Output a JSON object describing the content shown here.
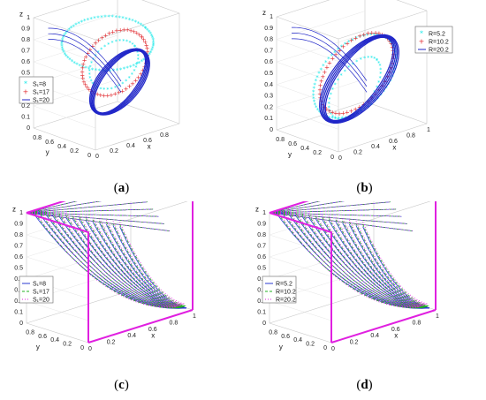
{
  "panels": [
    {
      "caption": "a",
      "legend": [
        "S₁=8",
        "S₁=17",
        "S₁=20"
      ],
      "series_colors": [
        "#1de9e9",
        "#e0262b",
        "#2026c8"
      ],
      "series_styles": [
        "star",
        "plus",
        "line"
      ],
      "legend_pos": "left"
    },
    {
      "caption": "b",
      "legend": [
        "R=5.2",
        "R=10.2",
        "R=20.2"
      ],
      "series_colors": [
        "#1de9e9",
        "#e0262b",
        "#2026c8"
      ],
      "series_styles": [
        "star",
        "plus",
        "line"
      ],
      "legend_pos": "top-right"
    },
    {
      "caption": "c",
      "legend": [
        "S₁=8",
        "S₁=17",
        "S₁=20"
      ],
      "series_colors": [
        "#2a3ad0",
        "#22b022",
        "#e020e0"
      ],
      "series_styles": [
        "solid",
        "dashed",
        "dotted"
      ],
      "legend_pos": "left"
    },
    {
      "caption": "d",
      "legend": [
        "R=5.2",
        "R=10.2",
        "R=20.2"
      ],
      "series_colors": [
        "#2a3ad0",
        "#22b022",
        "#e020e0"
      ],
      "series_styles": [
        "solid",
        "dashed",
        "dotted"
      ],
      "legend_pos": "left"
    }
  ],
  "chart_data": [
    {
      "type": "line",
      "title": "",
      "xlabel": "x",
      "ylabel": "y",
      "zlabel": "z",
      "xlim": [
        0,
        1
      ],
      "ylim": [
        0,
        1
      ],
      "zlim": [
        0,
        1
      ],
      "x_ticks": [
        "0",
        "0.2",
        "0.4",
        "0.6",
        "0.8"
      ],
      "y_ticks": [
        "0",
        "0.2",
        "0.4",
        "0.6",
        "0.8"
      ],
      "z_ticks": [
        "0",
        "0.1",
        "0.2",
        "0.3",
        "0.4",
        "0.5",
        "0.6",
        "0.7",
        "0.8",
        "0.9",
        "1"
      ],
      "series": [
        {
          "name": "S₁=8",
          "marker": "*",
          "color": "#1de9e9"
        },
        {
          "name": "S₁=17",
          "marker": "+",
          "color": "#e0262b"
        },
        {
          "name": "S₁=20",
          "marker": "line",
          "color": "#2026c8"
        }
      ]
    },
    {
      "type": "line",
      "title": "",
      "xlabel": "x",
      "ylabel": "y",
      "zlabel": "z",
      "xlim": [
        0,
        1
      ],
      "ylim": [
        0,
        1
      ],
      "zlim": [
        0,
        1
      ],
      "x_ticks": [
        "0",
        "0.2",
        "0.4",
        "0.6",
        "0.8",
        "1"
      ],
      "y_ticks": [
        "0",
        "0.2",
        "0.4",
        "0.6",
        "0.8"
      ],
      "z_ticks": [
        "0",
        "0.1",
        "0.2",
        "0.3",
        "0.4",
        "0.5",
        "0.6",
        "0.7",
        "0.8",
        "0.9",
        "1"
      ],
      "series": [
        {
          "name": "R=5.2",
          "marker": "*",
          "color": "#1de9e9"
        },
        {
          "name": "R=10.2",
          "marker": "+",
          "color": "#e0262b"
        },
        {
          "name": "R=20.2",
          "marker": "line",
          "color": "#2026c8"
        }
      ]
    },
    {
      "type": "line",
      "title": "",
      "xlabel": "x",
      "ylabel": "y",
      "zlabel": "z",
      "xlim": [
        0,
        1
      ],
      "ylim": [
        0,
        1
      ],
      "zlim": [
        0,
        1
      ],
      "x_ticks": [
        "0",
        "0.2",
        "0.4",
        "0.6",
        "0.8",
        "1"
      ],
      "y_ticks": [
        "0",
        "0.2",
        "0.4",
        "0.6",
        "0.8"
      ],
      "z_ticks": [
        "0",
        "0.1",
        "0.2",
        "0.3",
        "0.4",
        "0.5",
        "0.6",
        "0.7",
        "0.8",
        "0.9",
        "1"
      ],
      "series": [
        {
          "name": "S₁=8",
          "style": "solid",
          "color": "#2a3ad0"
        },
        {
          "name": "S₁=17",
          "style": "dashed",
          "color": "#22b022"
        },
        {
          "name": "S₁=20",
          "style": "dotted",
          "color": "#e020e0"
        }
      ]
    },
    {
      "type": "line",
      "title": "",
      "xlabel": "x",
      "ylabel": "y",
      "zlabel": "z",
      "xlim": [
        0,
        1
      ],
      "ylim": [
        0,
        1
      ],
      "zlim": [
        0,
        1
      ],
      "x_ticks": [
        "0",
        "0.2",
        "0.4",
        "0.6",
        "0.8",
        "1"
      ],
      "y_ticks": [
        "0",
        "0.2",
        "0.4",
        "0.6",
        "0.8"
      ],
      "z_ticks": [
        "0",
        "0.1",
        "0.2",
        "0.3",
        "0.4",
        "0.5",
        "0.6",
        "0.7",
        "0.8",
        "0.9",
        "1"
      ],
      "series": [
        {
          "name": "R=5.2",
          "style": "solid",
          "color": "#2a3ad0"
        },
        {
          "name": "R=10.2",
          "style": "dashed",
          "color": "#22b022"
        },
        {
          "name": "R=20.2",
          "style": "dotted",
          "color": "#e020e0"
        }
      ]
    }
  ]
}
